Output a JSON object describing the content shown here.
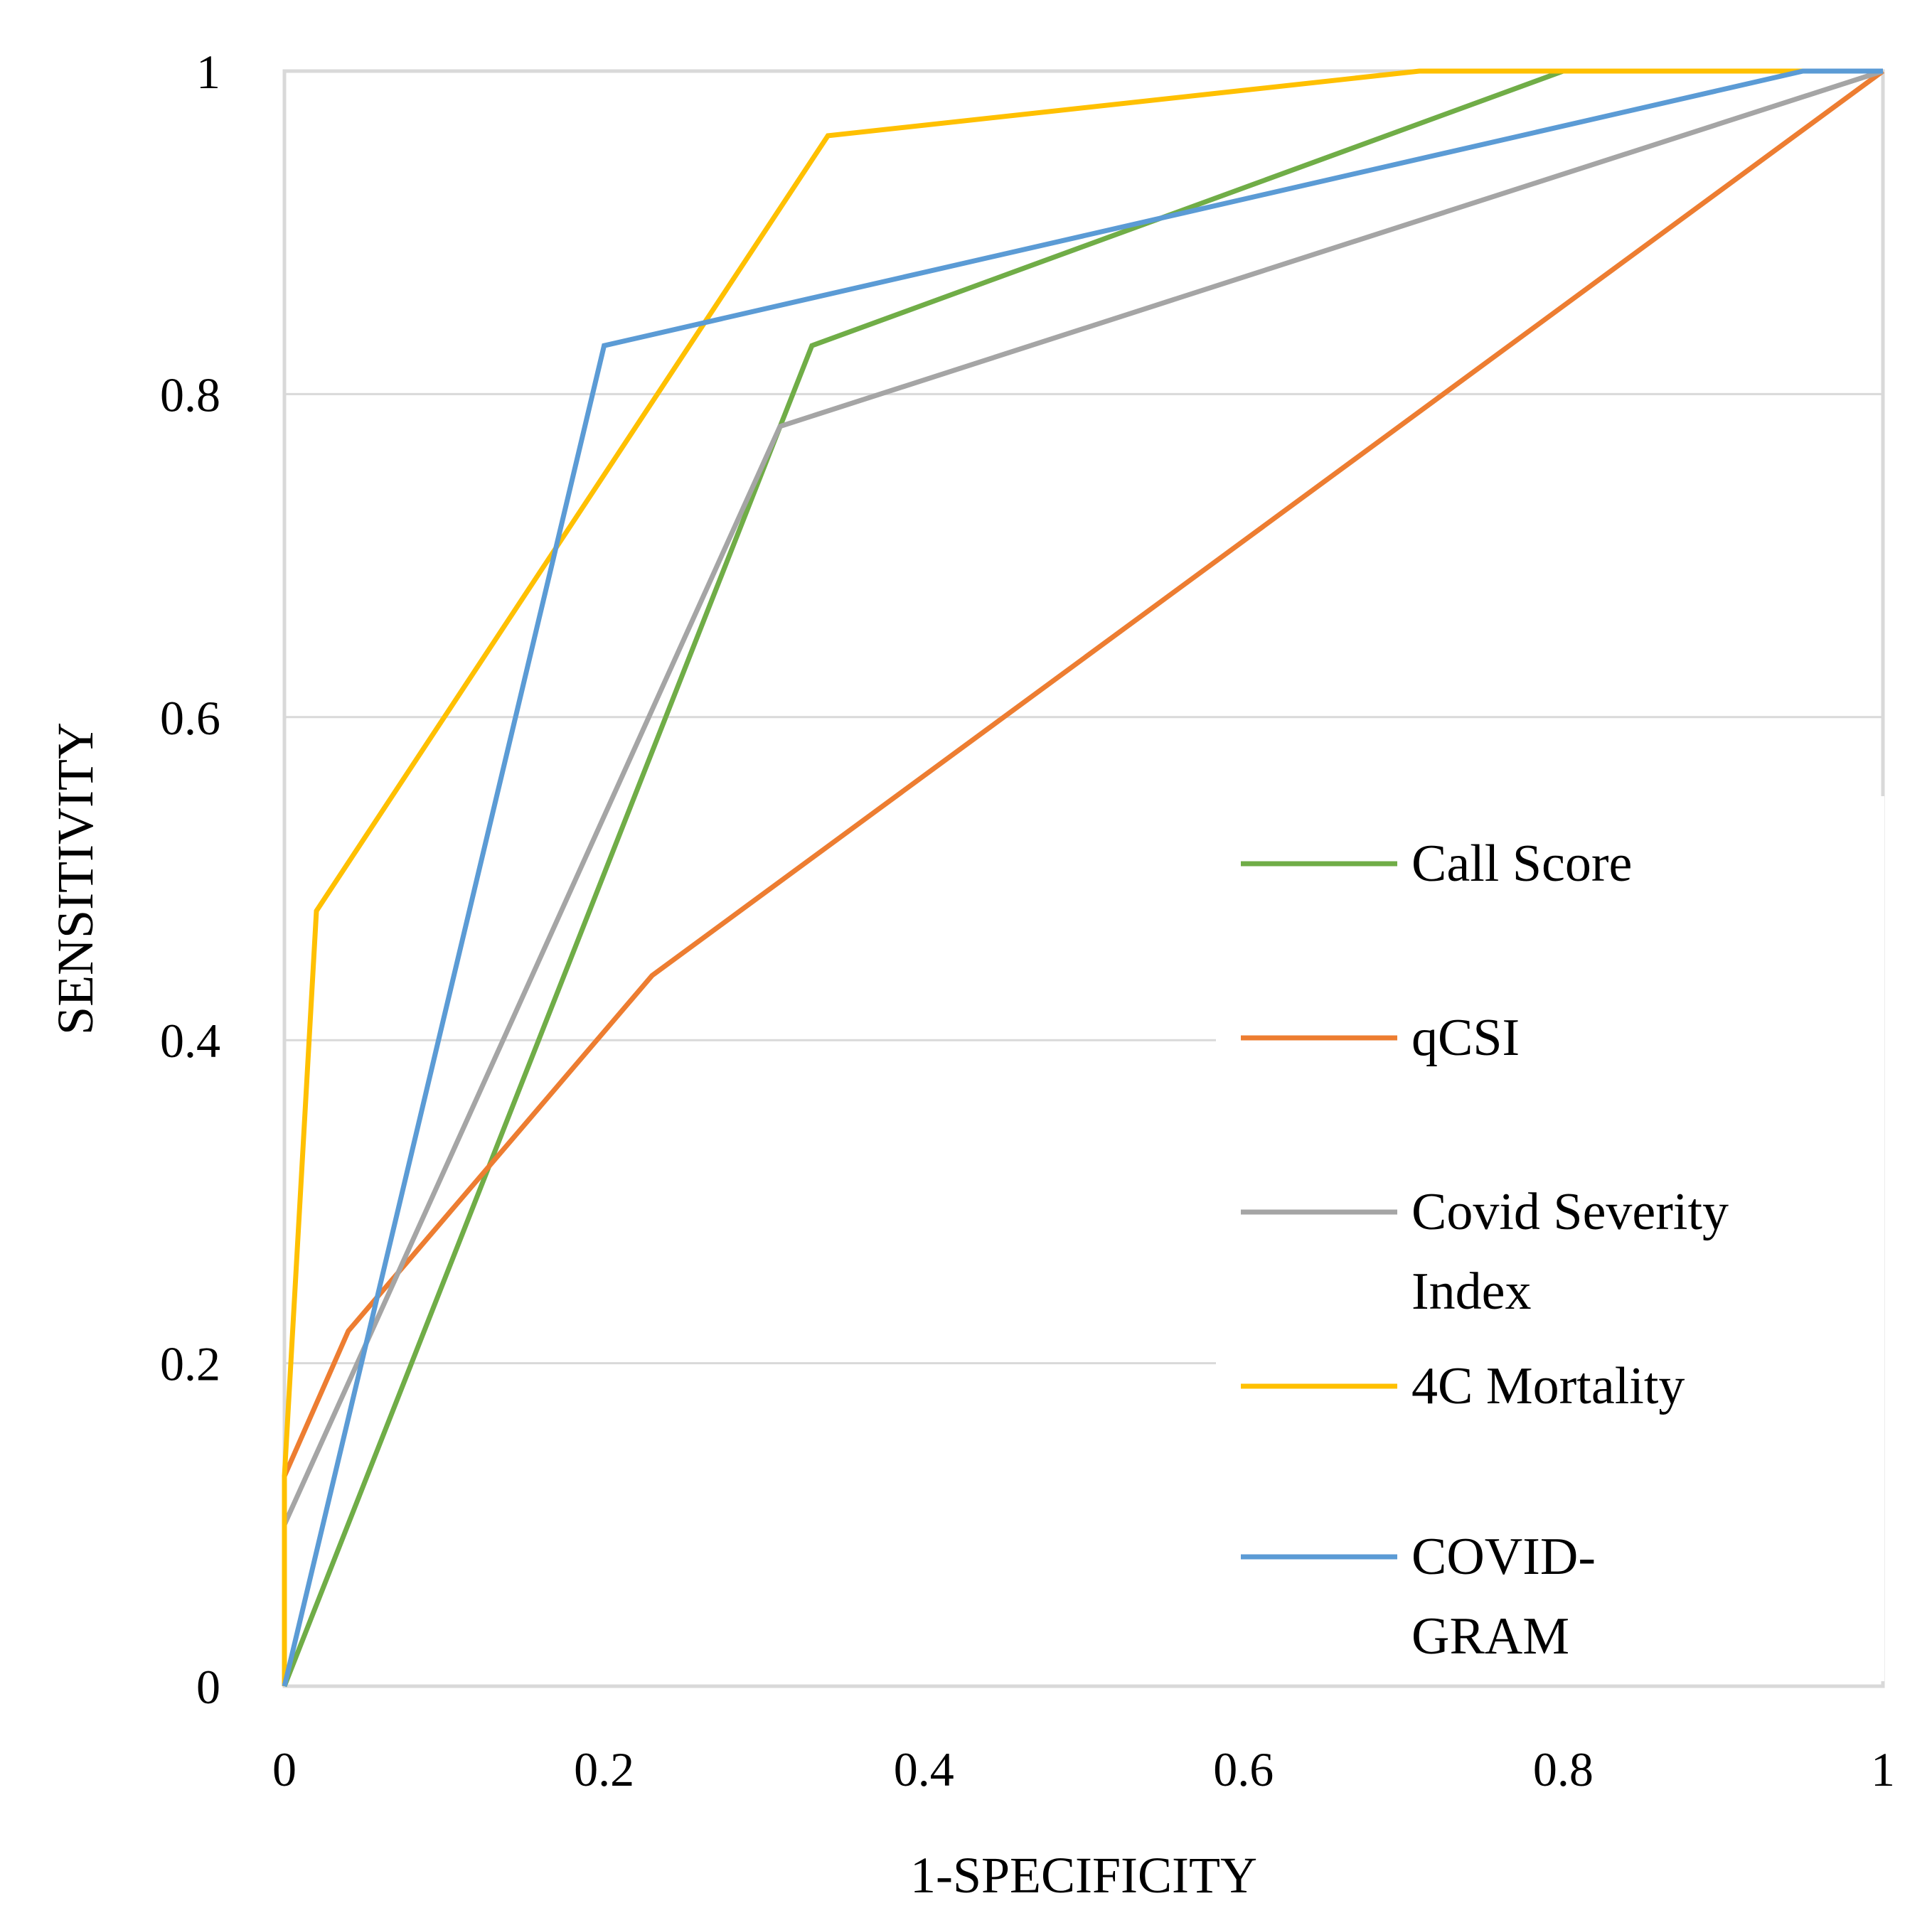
{
  "chart_data": {
    "type": "line",
    "title": "",
    "xlabel": "1-SPECIFICITY",
    "ylabel": "SENSITIVITY",
    "xlim": [
      0,
      1
    ],
    "ylim": [
      0,
      1
    ],
    "xticks": [
      "0",
      "0.2",
      "0.4",
      "0.6",
      "0.8",
      "1"
    ],
    "yticks": [
      "0",
      "0.2",
      "0.4",
      "0.6",
      "0.8",
      "1"
    ],
    "grid": "horizontal",
    "legend_position": "right",
    "series": [
      {
        "name": "Call Score",
        "legend_lines": [
          "Call Score"
        ],
        "color": "#70AD47",
        "points": [
          [
            0,
            0
          ],
          [
            0.33,
            0.83
          ],
          [
            0.8,
            1.0
          ],
          [
            1.0,
            1.0
          ]
        ]
      },
      {
        "name": "qCSI",
        "legend_lines": [
          "qCSI"
        ],
        "color": "#ED7D31",
        "points": [
          [
            0,
            0
          ],
          [
            0,
            0.13
          ],
          [
            0.04,
            0.22
          ],
          [
            0.23,
            0.44
          ],
          [
            1.0,
            1.0
          ]
        ]
      },
      {
        "name": "Covid Severity Index",
        "legend_lines": [
          "Covid Severity",
          "Index"
        ],
        "color": "#A5A5A5",
        "points": [
          [
            0,
            0
          ],
          [
            0,
            0.1
          ],
          [
            0.31,
            0.78
          ],
          [
            1.0,
            1.0
          ]
        ]
      },
      {
        "name": "4C Mortality",
        "legend_lines": [
          "4C Mortality"
        ],
        "color": "#FFC000",
        "points": [
          [
            0,
            0
          ],
          [
            0,
            0.13
          ],
          [
            0.02,
            0.48
          ],
          [
            0.34,
            0.96
          ],
          [
            0.71,
            1.0
          ],
          [
            1.0,
            1.0
          ]
        ]
      },
      {
        "name": "COVID-GRAM",
        "legend_lines": [
          "COVID-",
          "GRAM"
        ],
        "color": "#5B9BD5",
        "points": [
          [
            0,
            0
          ],
          [
            0.2,
            0.83
          ],
          [
            0.95,
            1.0
          ],
          [
            1.0,
            1.0
          ]
        ]
      }
    ]
  }
}
